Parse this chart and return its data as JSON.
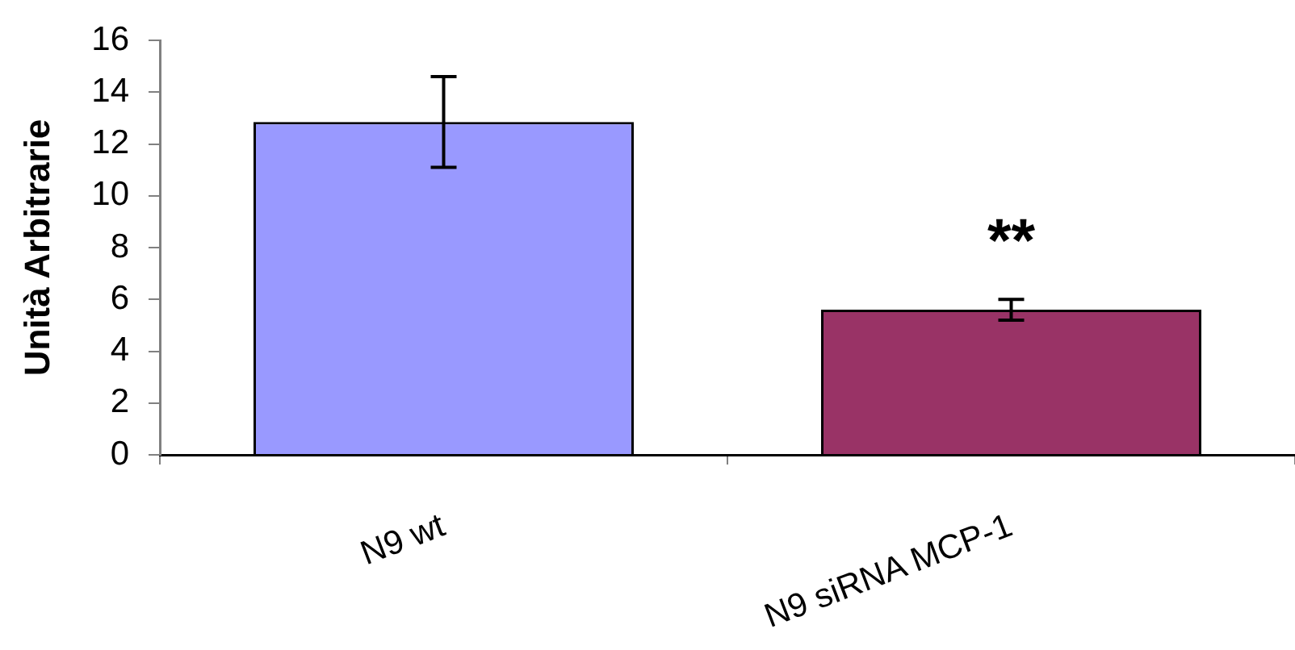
{
  "chart_data": {
    "type": "bar",
    "ylabel": "Unità Arbitrarie",
    "categories": [
      "N9 wt",
      "N9 siRNA MCP-1"
    ],
    "values": [
      12.85,
      5.6
    ],
    "colors": [
      "#9999ff",
      "#993366"
    ],
    "errors": [
      1.75,
      0.4
    ],
    "ylim": [
      0,
      16
    ],
    "yticks": [
      0,
      2,
      4,
      6,
      8,
      10,
      12,
      14,
      16
    ],
    "grid": false,
    "legend": false,
    "annotations": [
      "**"
    ]
  }
}
